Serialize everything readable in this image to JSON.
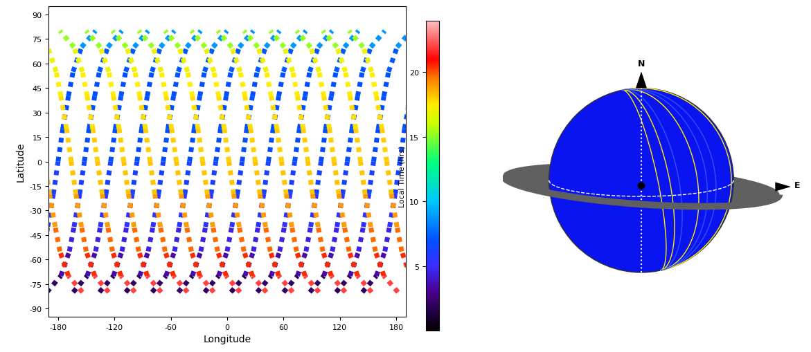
{
  "chart_data": {
    "type": "scatter",
    "x_label": "Longitude",
    "y_label": "Latitude",
    "xlim": [
      -190,
      190
    ],
    "xticks": [
      -180,
      -120,
      -60,
      0,
      60,
      120,
      180
    ],
    "ylim": [
      -95,
      95
    ],
    "yticks": [
      -90,
      -75,
      -60,
      -45,
      -30,
      -15,
      0,
      15,
      30,
      45,
      60,
      75,
      90
    ],
    "marker": "square",
    "colorbar": {
      "label": "Local Time (hrs)",
      "range": [
        0,
        24
      ],
      "ticks": [
        5,
        10,
        15,
        20
      ]
    },
    "passes": [
      {
        "lat": [
          -80,
          -70,
          -55,
          -40,
          -20,
          0,
          20,
          40,
          55,
          70,
          80
        ],
        "local_time": [
          1,
          3,
          4,
          5,
          6,
          6.5,
          7,
          7,
          7,
          7.5,
          10
        ],
        "lon": [
          [
            -220,
            -205,
            -196,
            -191,
            -185,
            -180,
            -175,
            -169,
            -164,
            -155,
            -140
          ],
          [
            -192,
            -177,
            -168,
            -163,
            -157,
            -152,
            -147,
            -141,
            -136,
            -127,
            -112
          ],
          [
            -164,
            -149,
            -140,
            -135,
            -129,
            -124,
            -119,
            -113,
            -108,
            -99,
            -84
          ],
          [
            -136,
            -121,
            -112,
            -107,
            -101,
            -96,
            -91,
            -85,
            -80,
            -71,
            -56
          ],
          [
            -108,
            -93,
            -84,
            -79,
            -73,
            -68,
            -63,
            -57,
            -52,
            -43,
            -28
          ],
          [
            -80,
            -65,
            -56,
            -51,
            -45,
            -40,
            -35,
            -29,
            -24,
            -15,
            0
          ],
          [
            -52,
            -37,
            -28,
            -23,
            -17,
            -12,
            -7,
            -1,
            4,
            13,
            28
          ],
          [
            -24,
            -9,
            0,
            5,
            11,
            16,
            21,
            27,
            32,
            41,
            56
          ],
          [
            4,
            19,
            28,
            33,
            39,
            44,
            49,
            55,
            60,
            69,
            84
          ],
          [
            32,
            47,
            56,
            61,
            67,
            72,
            77,
            83,
            88,
            97,
            112
          ],
          [
            60,
            75,
            84,
            89,
            95,
            100,
            105,
            111,
            116,
            125,
            140
          ],
          [
            88,
            103,
            112,
            117,
            123,
            128,
            133,
            139,
            144,
            153,
            168
          ],
          [
            116,
            131,
            140,
            145,
            151,
            156,
            161,
            167,
            172,
            181,
            196
          ],
          [
            144,
            159,
            168,
            173,
            179,
            184,
            189,
            195,
            200,
            209,
            224
          ]
        ]
      },
      {
        "lat": [
          -80,
          -70,
          -55,
          -40,
          -20,
          0,
          20,
          40,
          55,
          70,
          80
        ],
        "local_time": [
          23,
          21,
          20,
          19.5,
          18.5,
          18,
          18,
          17.5,
          17.5,
          16.5,
          14
        ],
        "lon": [
          [
            -154,
            -169,
            -178,
            -183,
            -189,
            -194,
            -199,
            -205,
            -210,
            -219,
            -234
          ],
          [
            -126,
            -141,
            -150,
            -155,
            -161,
            -166,
            -171,
            -177,
            -182,
            -191,
            -206
          ],
          [
            -98,
            -113,
            -122,
            -127,
            -133,
            -138,
            -143,
            -149,
            -154,
            -163,
            -178
          ],
          [
            -70,
            -85,
            -94,
            -99,
            -105,
            -110,
            -115,
            -121,
            -126,
            -135,
            -150
          ],
          [
            -42,
            -57,
            -66,
            -71,
            -77,
            -82,
            -87,
            -93,
            -98,
            -107,
            -122
          ],
          [
            -14,
            -29,
            -38,
            -43,
            -49,
            -54,
            -59,
            -65,
            -70,
            -79,
            -94
          ],
          [
            14,
            -1,
            -10,
            -15,
            -21,
            -26,
            -31,
            -37,
            -42,
            -51,
            -66
          ],
          [
            42,
            27,
            18,
            13,
            7,
            2,
            -3,
            -9,
            -14,
            -23,
            -38
          ],
          [
            70,
            55,
            46,
            41,
            35,
            30,
            25,
            19,
            14,
            5,
            -10
          ],
          [
            98,
            83,
            74,
            69,
            63,
            58,
            53,
            47,
            42,
            33,
            18
          ],
          [
            126,
            111,
            102,
            97,
            91,
            86,
            81,
            75,
            70,
            61,
            46
          ],
          [
            154,
            139,
            130,
            125,
            119,
            114,
            109,
            103,
            98,
            89,
            74
          ],
          [
            182,
            167,
            158,
            153,
            147,
            142,
            137,
            131,
            126,
            117,
            102
          ],
          [
            210,
            195,
            186,
            181,
            175,
            170,
            165,
            159,
            154,
            145,
            130
          ]
        ]
      }
    ],
    "globe": {
      "north_label": "N",
      "east_label": "E"
    }
  }
}
